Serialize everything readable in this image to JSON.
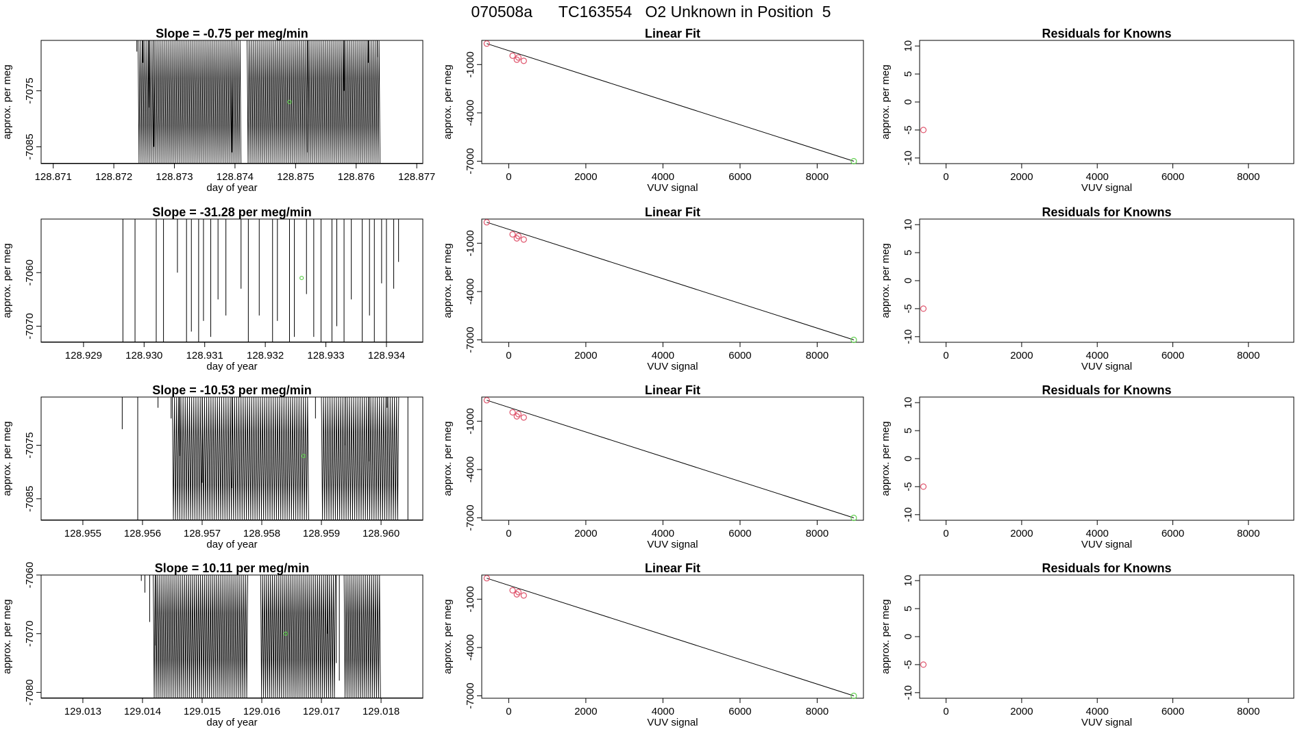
{
  "figure_title": "070508a      TC163554   O2 Unknown in Position  5",
  "colors": {
    "axis": "#000000",
    "known": "#DF536B",
    "unknown": "#61D04F",
    "trace": "#000000"
  },
  "chart_data": [
    {
      "row": 1,
      "type": "line",
      "title": "Slope =  -0.75  per meg/min",
      "xlabel": "day of year",
      "ylabel": "approx. per meg",
      "xlim": [
        128.8708,
        128.8771
      ],
      "ylim": [
        -7088,
        -7066
      ],
      "xticks": [
        "128.871",
        "128.872",
        "128.873",
        "128.874",
        "128.875",
        "128.876",
        "128.877"
      ],
      "yticks": [
        "-7085",
        "-7075"
      ],
      "trace": {
        "step": 1.65e-05,
        "segments": [
          [
            128.8724,
            128.8741
          ],
          [
            128.8742,
            128.8764
          ]
        ],
        "pre_ticks": [
          [
            128.87238,
            -7068
          ],
          [
            128.87248,
            -7070
          ],
          [
            128.87258,
            -7078
          ],
          [
            128.87266,
            -7085
          ]
        ],
        "sparse": [
          [
            128.87395,
            -7086
          ],
          [
            128.8752,
            -7086
          ],
          [
            128.8758,
            -7075
          ],
          [
            128.8762,
            -7070
          ],
          [
            128.87635,
            -7069
          ]
        ]
      },
      "unknown_point": {
        "x": 128.8749,
        "y": -7077
      }
    },
    {
      "row": 2,
      "type": "line",
      "title": "Slope =  -31.28  per meg/min",
      "xlabel": "day of year",
      "ylabel": "approx. per meg",
      "xlim": [
        128.9283,
        128.9346
      ],
      "ylim": [
        -7073,
        -7050
      ],
      "xticks": [
        "128.929",
        "128.930",
        "128.931",
        "128.932",
        "128.933",
        "128.934"
      ],
      "yticks": [
        "-7070",
        "-7060"
      ],
      "trace": {
        "spikes": [
          [
            128.92965,
            -7073
          ],
          [
            128.92985,
            -7073
          ],
          [
            128.9302,
            -7073
          ],
          [
            128.93032,
            -7073
          ],
          [
            128.93055,
            -7060
          ],
          [
            128.9307,
            -7073
          ],
          [
            128.93078,
            -7071
          ],
          [
            128.9309,
            -7073
          ],
          [
            128.93098,
            -7069
          ],
          [
            128.9311,
            -7072
          ],
          [
            128.93122,
            -7065
          ],
          [
            128.93135,
            -7068
          ],
          [
            128.9316,
            -7063
          ],
          [
            128.93172,
            -7073
          ],
          [
            128.9319,
            -7068
          ],
          [
            128.93212,
            -7073
          ],
          [
            128.9322,
            -7069
          ],
          [
            128.9324,
            -7073
          ],
          [
            128.93248,
            -7072
          ],
          [
            128.93268,
            -7064
          ],
          [
            128.9328,
            -7072
          ],
          [
            128.93292,
            -7073
          ],
          [
            128.9331,
            -7073
          ],
          [
            128.93318,
            -7070
          ],
          [
            128.9333,
            -7073
          ],
          [
            128.93342,
            -7065
          ],
          [
            128.9336,
            -7073
          ],
          [
            128.93372,
            -7068
          ],
          [
            128.9338,
            -7073
          ],
          [
            128.93392,
            -7062
          ],
          [
            128.934,
            -7073
          ],
          [
            128.93412,
            -7063
          ],
          [
            128.9342,
            -7058
          ]
        ]
      },
      "unknown_point": {
        "x": 128.9326,
        "y": -7061
      }
    },
    {
      "row": 3,
      "type": "line",
      "title": "Slope =  -10.53  per meg/min",
      "xlabel": "day of year",
      "ylabel": "approx. per meg",
      "xlim": [
        128.9543,
        128.9607
      ],
      "ylim": [
        -7089,
        -7066
      ],
      "xticks": [
        "128.955",
        "128.956",
        "128.957",
        "128.958",
        "128.959",
        "128.960"
      ],
      "yticks": [
        "-7085",
        "-7075"
      ],
      "trace": {
        "step": 1.8e-05,
        "segments": [
          [
            128.9565,
            128.9588
          ],
          [
            128.959,
            128.9603
          ]
        ],
        "pre_ticks": [
          [
            128.95566,
            -7072
          ],
          [
            128.95592,
            -7089
          ],
          [
            128.95626,
            -7068
          ],
          [
            128.95648,
            -7070
          ],
          [
            128.95662,
            -7077
          ]
        ],
        "sparse": [
          [
            128.957,
            -7082
          ],
          [
            128.9575,
            -7083
          ],
          [
            128.9589,
            -7070
          ],
          [
            128.9594,
            -7075
          ],
          [
            128.9598,
            -7078
          ],
          [
            128.9601,
            -7068
          ],
          [
            128.96045,
            -7089
          ]
        ]
      },
      "unknown_point": {
        "x": 128.9587,
        "y": -7077
      }
    },
    {
      "row": 4,
      "type": "line",
      "title": "Slope =  10.11  per meg/min",
      "xlabel": "day of year",
      "ylabel": "approx. per meg",
      "xlim": [
        129.0123,
        129.0187
      ],
      "ylim": [
        -7081,
        -7060
      ],
      "xticks": [
        "129.013",
        "129.014",
        "129.015",
        "129.016",
        "129.017",
        "129.018"
      ],
      "yticks": [
        "-7080",
        "-7070",
        "-7060"
      ],
      "trace": {
        "step": 1.65e-05,
        "segments": [
          [
            129.01418,
            129.01578
          ],
          [
            129.01598,
            129.01725
          ],
          [
            129.01738,
            129.018
          ]
        ],
        "pre_ticks": [
          [
            129.01398,
            -7061
          ],
          [
            129.01404,
            -7063
          ],
          [
            129.01412,
            -7068
          ],
          [
            129.01422,
            -7072
          ]
        ],
        "sparse": [
          [
            129.0171,
            -7070
          ],
          [
            129.01725,
            -7075
          ],
          [
            129.0173,
            -7078
          ]
        ]
      },
      "unknown_point": {
        "x": 129.0164,
        "y": -7070
      }
    }
  ],
  "linear_fit": {
    "type": "scatter",
    "title": "Linear Fit",
    "xlabel": "VUV signal",
    "ylabel": "approx. per meg",
    "xlim": [
      -700,
      9200
    ],
    "ylim": [
      -7150,
      500
    ],
    "xticks": [
      "0",
      "2000",
      "4000",
      "6000",
      "8000"
    ],
    "yticks": [
      "-7000",
      "-4000",
      "-1000"
    ],
    "knowns": [
      [
        -570,
        300
      ],
      [
        100,
        -450
      ],
      [
        210,
        -700
      ],
      [
        250,
        -560
      ],
      [
        390,
        -770
      ]
    ],
    "unknown": [
      8950,
      -7000
    ],
    "fit_line": [
      [
        -570,
        300
      ],
      [
        8950,
        -7000
      ]
    ]
  },
  "residuals": {
    "type": "scatter",
    "title": "Residuals for Knowns",
    "xlabel": "VUV signal",
    "ylabel": "approx. per meg",
    "xlim": [
      -700,
      9200
    ],
    "ylim": [
      -11,
      11
    ],
    "xticks": [
      "0",
      "2000",
      "4000",
      "6000",
      "8000"
    ],
    "yticks": [
      "-10",
      "-5",
      "0",
      "5",
      "10"
    ],
    "points": [
      [
        -600,
        -5
      ]
    ]
  }
}
